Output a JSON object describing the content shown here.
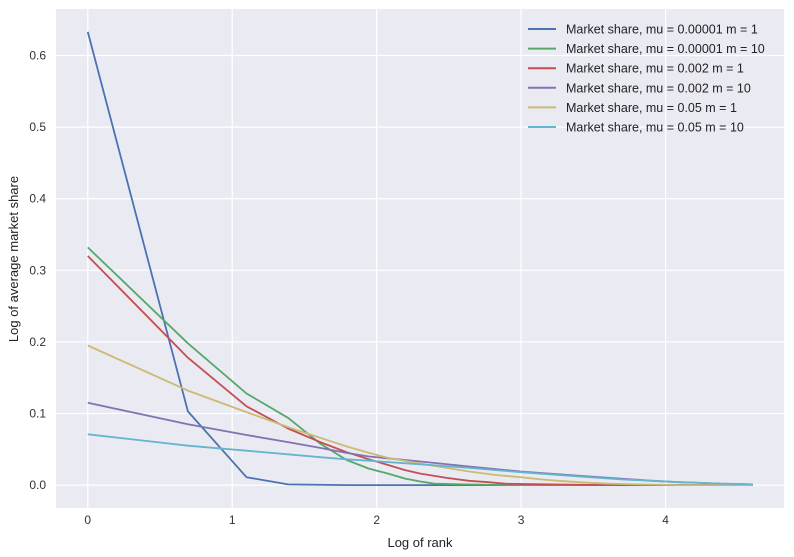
{
  "chart_data": {
    "type": "line",
    "xlabel": "Log of rank",
    "ylabel": "Log of average market share",
    "xlim": [
      -0.22,
      4.82
    ],
    "ylim": [
      -0.032,
      0.665
    ],
    "xticks": [
      0,
      1,
      2,
      3,
      4
    ],
    "yticks": [
      0.0,
      0.1,
      0.2,
      0.3,
      0.4,
      0.5,
      0.6
    ],
    "xtick_labels": [
      "0",
      "1",
      "2",
      "3",
      "4"
    ],
    "ytick_labels": [
      "0.0",
      "0.1",
      "0.2",
      "0.3",
      "0.4",
      "0.5",
      "0.6"
    ],
    "grid": true,
    "legend_position": "top-right",
    "x": [
      0,
      0.693,
      1.099,
      1.386,
      1.609,
      1.792,
      1.946,
      2.079,
      2.197,
      2.303,
      2.398,
      2.485,
      2.565,
      2.639,
      2.708,
      2.773,
      2.833,
      2.89,
      2.944,
      2.996,
      3.045,
      3.091,
      3.135,
      3.178,
      3.219,
      3.258,
      3.296,
      3.332,
      3.367,
      3.401,
      3.434,
      3.466,
      3.497,
      3.526,
      3.555,
      3.584,
      3.611,
      3.638,
      3.664,
      3.689,
      3.714,
      3.738,
      3.761,
      3.784,
      3.807,
      3.829,
      3.85,
      3.871,
      3.892,
      3.912,
      3.932,
      3.951,
      3.97,
      3.989,
      4.007,
      4.025,
      4.043,
      4.06,
      4.078,
      4.094,
      4.111,
      4.127,
      4.143,
      4.159,
      4.174,
      4.19,
      4.205,
      4.22,
      4.234,
      4.248,
      4.263,
      4.277,
      4.29,
      4.304,
      4.317,
      4.331,
      4.344,
      4.357,
      4.369,
      4.382,
      4.394,
      4.407,
      4.419,
      4.431,
      4.443,
      4.454,
      4.466,
      4.477,
      4.489,
      4.5,
      4.511,
      4.522,
      4.533,
      4.543,
      4.554,
      4.564,
      4.575,
      4.585,
      4.595,
      4.605
    ],
    "series": [
      {
        "name": "Market share, mu = 0.00001 m = 1",
        "color": "#4C72B0",
        "points": [
          [
            0,
            0.633
          ],
          [
            0.693,
            0.103
          ],
          [
            1.099,
            0.011
          ],
          [
            1.386,
            0.001
          ],
          [
            1.8,
            0.0
          ],
          [
            4.605,
            0.0
          ]
        ]
      },
      {
        "name": "Market share, mu = 0.00001 m = 10",
        "color": "#55A868",
        "points": [
          [
            0,
            0.332
          ],
          [
            0.693,
            0.198
          ],
          [
            1.099,
            0.128
          ],
          [
            1.386,
            0.094
          ],
          [
            1.609,
            0.058
          ],
          [
            1.792,
            0.035
          ],
          [
            1.946,
            0.023
          ],
          [
            2.079,
            0.016
          ],
          [
            2.197,
            0.009
          ],
          [
            2.303,
            0.005
          ],
          [
            2.398,
            0.002
          ],
          [
            2.6,
            0.001
          ],
          [
            2.9,
            0.0
          ],
          [
            4.605,
            0.0
          ]
        ]
      },
      {
        "name": "Market share, mu = 0.002 m = 1",
        "color": "#C44E52",
        "points": [
          [
            0,
            0.32
          ],
          [
            0.693,
            0.178
          ],
          [
            1.099,
            0.11
          ],
          [
            1.386,
            0.079
          ],
          [
            1.609,
            0.06
          ],
          [
            1.792,
            0.046
          ],
          [
            1.946,
            0.036
          ],
          [
            2.079,
            0.028
          ],
          [
            2.197,
            0.021
          ],
          [
            2.303,
            0.016
          ],
          [
            2.485,
            0.01
          ],
          [
            2.639,
            0.006
          ],
          [
            2.773,
            0.004
          ],
          [
            2.89,
            0.002
          ],
          [
            3.2,
            0.001
          ],
          [
            3.6,
            0.0
          ],
          [
            4.605,
            0.0
          ]
        ]
      },
      {
        "name": "Market share, mu = 0.002 m = 10",
        "color": "#8172B2",
        "points": [
          [
            0,
            0.115
          ],
          [
            0.693,
            0.085
          ],
          [
            1.099,
            0.07
          ],
          [
            1.386,
            0.06
          ],
          [
            1.609,
            0.052
          ],
          [
            1.792,
            0.045
          ],
          [
            1.946,
            0.04
          ],
          [
            2.303,
            0.033
          ],
          [
            2.639,
            0.026
          ],
          [
            2.996,
            0.019
          ],
          [
            3.401,
            0.013
          ],
          [
            3.689,
            0.009
          ],
          [
            3.912,
            0.006
          ],
          [
            4.094,
            0.004
          ],
          [
            4.248,
            0.003
          ],
          [
            4.382,
            0.002
          ],
          [
            4.5,
            0.0015
          ],
          [
            4.605,
            0.001
          ]
        ]
      },
      {
        "name": "Market share, mu = 0.05 m = 1",
        "color": "#CCB974",
        "points": [
          [
            0,
            0.195
          ],
          [
            0.693,
            0.132
          ],
          [
            1.099,
            0.102
          ],
          [
            1.386,
            0.081
          ],
          [
            1.609,
            0.066
          ],
          [
            1.792,
            0.054
          ],
          [
            1.946,
            0.045
          ],
          [
            2.079,
            0.038
          ],
          [
            2.303,
            0.03
          ],
          [
            2.485,
            0.024
          ],
          [
            2.639,
            0.019
          ],
          [
            2.833,
            0.014
          ],
          [
            2.996,
            0.011
          ],
          [
            3.135,
            0.008
          ],
          [
            3.258,
            0.006
          ],
          [
            3.4,
            0.004
          ],
          [
            3.6,
            0.002
          ],
          [
            3.8,
            0.001
          ],
          [
            4.1,
            0.0
          ],
          [
            4.605,
            0.0
          ]
        ]
      },
      {
        "name": "Market share, mu = 0.05 m = 10",
        "color": "#64B5CD",
        "points": [
          [
            0,
            0.071
          ],
          [
            0.693,
            0.055
          ],
          [
            1.099,
            0.048
          ],
          [
            1.386,
            0.043
          ],
          [
            1.609,
            0.039
          ],
          [
            1.792,
            0.036
          ],
          [
            1.946,
            0.034
          ],
          [
            2.303,
            0.029
          ],
          [
            2.639,
            0.024
          ],
          [
            2.996,
            0.018
          ],
          [
            3.401,
            0.012
          ],
          [
            3.689,
            0.008
          ],
          [
            3.912,
            0.006
          ],
          [
            4.094,
            0.004
          ],
          [
            4.248,
            0.003
          ],
          [
            4.382,
            0.002
          ],
          [
            4.5,
            0.0015
          ],
          [
            4.605,
            0.001
          ]
        ]
      }
    ]
  }
}
